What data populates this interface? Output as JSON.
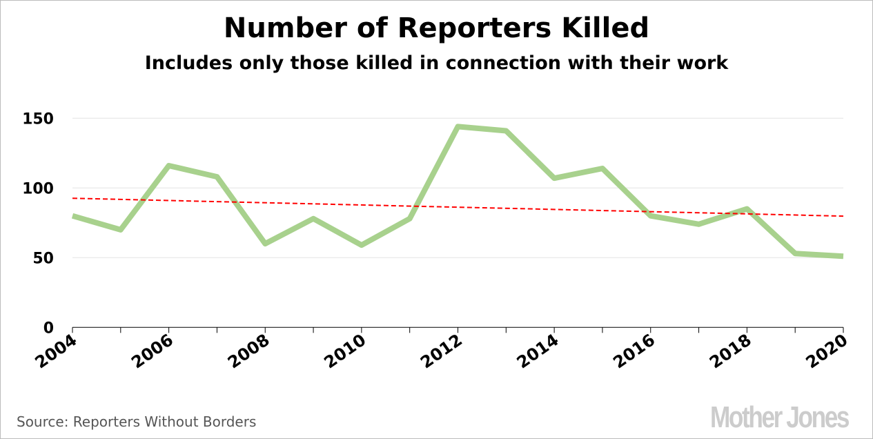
{
  "chart_data": {
    "type": "line",
    "title": "Number of Reporters Killed",
    "subtitle": "Includes only those killed in connection with their work",
    "xlabel": "",
    "ylabel": "",
    "x": [
      2004,
      2005,
      2006,
      2007,
      2008,
      2009,
      2010,
      2011,
      2012,
      2013,
      2014,
      2015,
      2016,
      2017,
      2018,
      2019,
      2020
    ],
    "x_tick_labels": [
      "2004",
      "2006",
      "2008",
      "2010",
      "2012",
      "2014",
      "2016",
      "2018",
      "2020"
    ],
    "y_tick_labels": [
      "0",
      "50",
      "100",
      "150"
    ],
    "ylim": [
      0,
      150
    ],
    "grid": true,
    "series": [
      {
        "values": [
          80,
          70,
          116,
          108,
          60,
          78,
          59,
          78,
          144,
          141,
          107,
          114,
          80,
          74,
          85,
          53,
          51
        ],
        "color": "#a8d18d",
        "style": "solid"
      }
    ],
    "trendline": {
      "start": [
        2004,
        92.6
      ],
      "end": [
        2020,
        79.8
      ],
      "color": "#ff0000",
      "style": "dashed"
    }
  },
  "footer": {
    "source": "Source: Reporters Without Borders",
    "logo": "MotherJones"
  }
}
